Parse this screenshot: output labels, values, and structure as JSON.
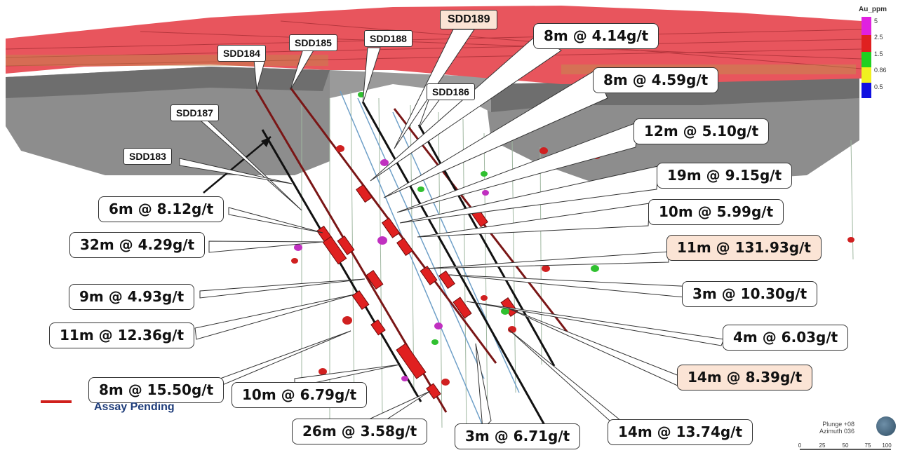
{
  "colors": {
    "pit_surface": "#e8555d",
    "pit_wall": "#8d8d8d",
    "drillhole": "#7a1616",
    "callout_highlight": "#fbe4d5",
    "assay_pending": "#d0201c"
  },
  "holes": [
    {
      "id": "SDD184",
      "label": "SDD184",
      "highlight": false
    },
    {
      "id": "SDD185",
      "label": "SDD185",
      "highlight": false
    },
    {
      "id": "SDD188",
      "label": "SDD188",
      "highlight": false
    },
    {
      "id": "SDD189",
      "label": "SDD189",
      "highlight": true
    },
    {
      "id": "SDD186",
      "label": "SDD186",
      "highlight": false
    },
    {
      "id": "SDD187",
      "label": "SDD187",
      "highlight": false
    },
    {
      "id": "SDD183",
      "label": "SDD183",
      "highlight": false
    }
  ],
  "intercepts": [
    {
      "label": "8m @ 4.14g/t",
      "highlight": false
    },
    {
      "label": "8m @ 4.59g/t",
      "highlight": false
    },
    {
      "label": "12m @ 5.10g/t",
      "highlight": false
    },
    {
      "label": "19m @ 9.15g/t",
      "highlight": false
    },
    {
      "label": "10m @ 5.99g/t",
      "highlight": false
    },
    {
      "label": "11m @ 131.93g/t",
      "highlight": true
    },
    {
      "label": "3m @ 10.30g/t",
      "highlight": false
    },
    {
      "label": "4m @ 6.03g/t",
      "highlight": false
    },
    {
      "label": "14m @ 8.39g/t",
      "highlight": true
    },
    {
      "label": "14m @ 13.74g/t",
      "highlight": false
    },
    {
      "label": "3m @ 6.71g/t",
      "highlight": false
    },
    {
      "label": "26m @ 3.58g/t",
      "highlight": false
    },
    {
      "label": "10m @ 6.79g/t",
      "highlight": false
    },
    {
      "label": "8m @ 15.50g/t",
      "highlight": false
    },
    {
      "label": "11m @ 12.36g/t",
      "highlight": false
    },
    {
      "label": "9m @ 4.93g/t",
      "highlight": false
    },
    {
      "label": "32m @ 4.29g/t",
      "highlight": false
    },
    {
      "label": "6m @ 8.12g/t",
      "highlight": false
    }
  ],
  "legend": {
    "title": "Au_ppm",
    "bins": [
      {
        "label": "5",
        "color": "#e020e0"
      },
      {
        "label": "2.5",
        "color": "#e02020"
      },
      {
        "label": "1.5",
        "color": "#20d020"
      },
      {
        "label": "0.86",
        "color": "#f0f020"
      },
      {
        "label": "0.5",
        "color": "#1010e0"
      }
    ]
  },
  "assay_legend": {
    "label": "Assay Pending"
  },
  "orientation": {
    "plunge": "Plunge +08",
    "azimuth": "Azimuth 036"
  },
  "scale": {
    "ticks": [
      "0",
      "25",
      "50",
      "75",
      "100"
    ]
  }
}
